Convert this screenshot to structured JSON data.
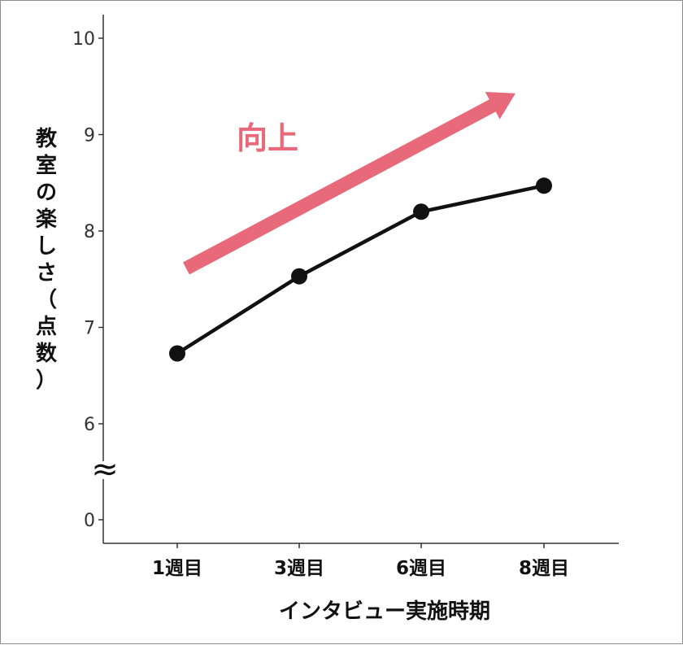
{
  "chart_data": {
    "type": "line",
    "categories": [
      "1週目",
      "3週目",
      "6週目",
      "8週目"
    ],
    "values": [
      6.73,
      7.53,
      8.2,
      8.47
    ],
    "xlabel": "インタビュー実施時期",
    "ylabel": "教室の楽しさ（点数）",
    "yticks": [
      "0",
      "6",
      "7",
      "8",
      "9",
      "10"
    ],
    "ylim": [
      6,
      10
    ],
    "axis_break": "≈",
    "grid": false,
    "annotation": {
      "text": "向上",
      "color": "#e8697a"
    },
    "colors": {
      "line": "#111111",
      "arrow": "#e8697a"
    }
  }
}
